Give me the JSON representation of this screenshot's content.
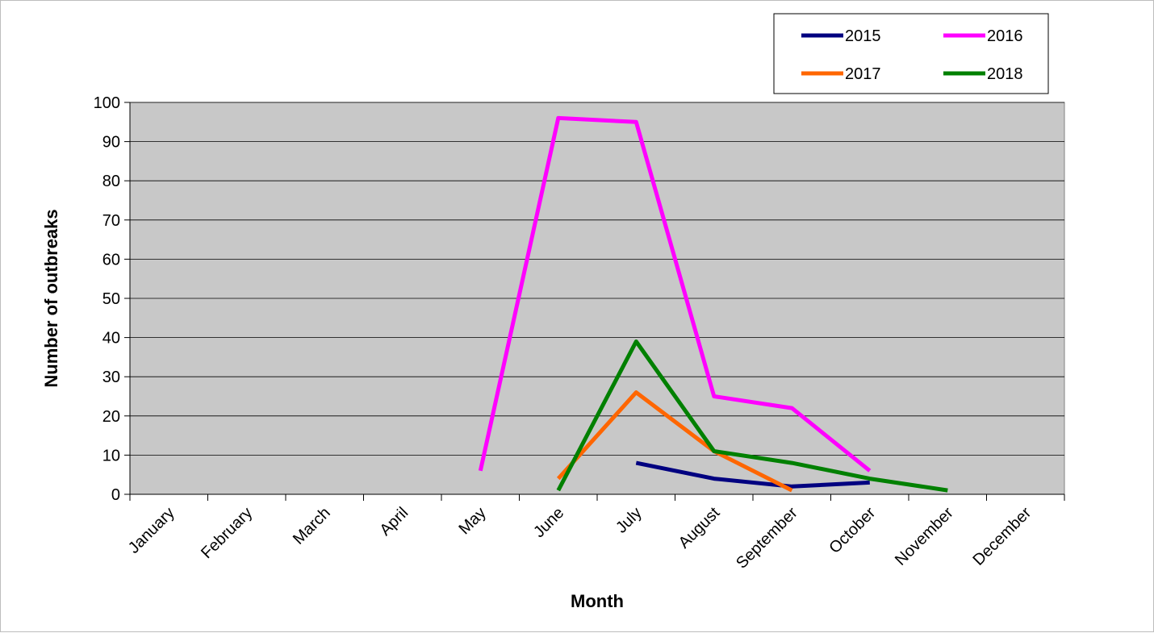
{
  "chart_data": {
    "type": "line",
    "title": "",
    "xlabel": "Month",
    "ylabel": "Number of outbreaks",
    "categories": [
      "January",
      "February",
      "March",
      "April",
      "May",
      "June",
      "July",
      "August",
      "September",
      "October",
      "November",
      "December"
    ],
    "ylim": [
      0,
      100
    ],
    "yticks": [
      0,
      10,
      20,
      30,
      40,
      50,
      60,
      70,
      80,
      90,
      100
    ],
    "grid": true,
    "legend_position": "top-right",
    "series": [
      {
        "name": "2015",
        "color": "#000080",
        "values": [
          null,
          null,
          null,
          null,
          null,
          null,
          8,
          4,
          2,
          3,
          null,
          null
        ]
      },
      {
        "name": "2016",
        "color": "#ff00ff",
        "values": [
          null,
          null,
          null,
          null,
          6,
          96,
          95,
          25,
          22,
          6,
          null,
          null
        ]
      },
      {
        "name": "2017",
        "color": "#ff6600",
        "values": [
          null,
          null,
          null,
          null,
          null,
          4,
          26,
          11,
          1,
          null,
          null,
          null
        ]
      },
      {
        "name": "2018",
        "color": "#008000",
        "values": [
          null,
          null,
          null,
          null,
          null,
          1,
          39,
          11,
          8,
          4,
          1,
          null
        ]
      }
    ]
  }
}
